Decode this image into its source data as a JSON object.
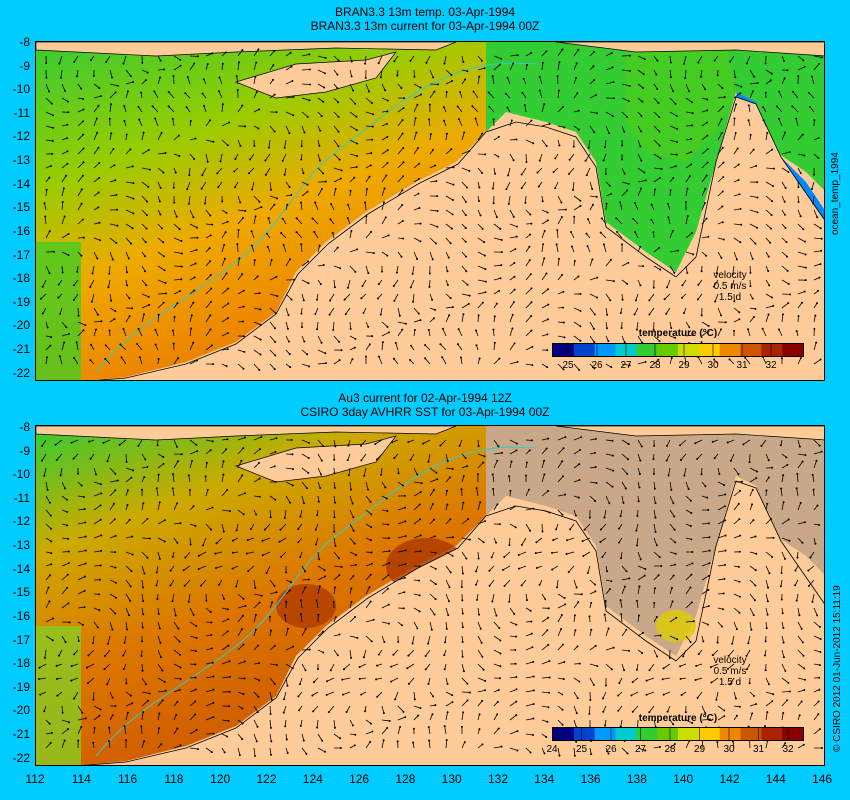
{
  "panel_top": {
    "title_line1": "BRAN3.3 13m temp. 03-Apr-1994",
    "title_line2": "BRAN3.3 13m current for 03-Apr-1994 00Z",
    "side_label": "ocean_temp_1994",
    "velocity_label": "velocity",
    "velocity_scale": "0.5 m/s",
    "velocity_time": "1.5 d",
    "colorbar_title": "temperature (°C)",
    "colorbar_ticks": [
      "25",
      "26",
      "27",
      "28",
      "29",
      "30",
      "31",
      "32"
    ]
  },
  "panel_bottom": {
    "title_line1": "Au3 current for 02-Apr-1994 12Z",
    "title_line2": "CSIRO 3day AVHRR SST for 03-Apr-1994 00Z",
    "side_label": "© CSIRO 2012   01-Jun-2012 15:11:19",
    "velocity_label": "velocity",
    "velocity_scale": "0.5 m/s",
    "velocity_time": "1.5 d",
    "colorbar_title": "temperature (°C)",
    "colorbar_ticks": [
      "24",
      "25",
      "26",
      "27",
      "28",
      "29",
      "30",
      "31",
      "32"
    ]
  },
  "axes": {
    "lat_ticks": [
      "-8",
      "-9",
      "-10",
      "-11",
      "-12",
      "-13",
      "-14",
      "-15",
      "-16",
      "-17",
      "-18",
      "-19",
      "-20",
      "-21",
      "-22"
    ],
    "lon_ticks": [
      "112",
      "114",
      "116",
      "118",
      "120",
      "122",
      "124",
      "126",
      "128",
      "130",
      "132",
      "134",
      "136",
      "138",
      "140",
      "142",
      "144",
      "146"
    ]
  },
  "colors": {
    "background": "#00ccff",
    "land": "#ffcc99",
    "no_data": "#c8a888",
    "colormap": [
      "#000080",
      "#0044cc",
      "#0099ff",
      "#00cccc",
      "#33cc33",
      "#66cc00",
      "#ccdd00",
      "#ffcc00",
      "#ee8800",
      "#cc5500",
      "#aa2200",
      "#880000"
    ]
  }
}
